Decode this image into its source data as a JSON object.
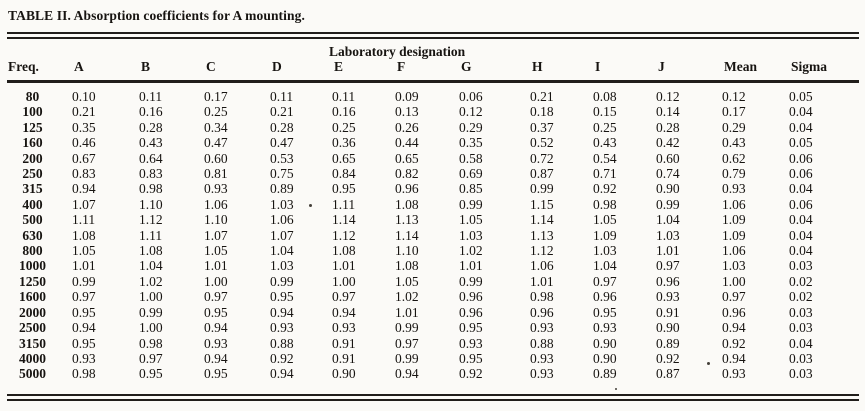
{
  "title": "TABLE II. Absorption coefficients for A mounting.",
  "table": {
    "group_header": "Laboratory designation",
    "columns": [
      "Freq.",
      "A",
      "B",
      "C",
      "D",
      "E",
      "F",
      "G",
      "H",
      "I",
      "J",
      "Mean",
      "Sigma"
    ],
    "rows": [
      {
        "freq": "80",
        "values": [
          "0.10",
          "0.11",
          "0.17",
          "0.11",
          "0.11",
          "0.09",
          "0.06",
          "0.21",
          "0.08",
          "0.12",
          "0.12",
          "0.05"
        ]
      },
      {
        "freq": "100",
        "values": [
          "0.21",
          "0.16",
          "0.25",
          "0.21",
          "0.16",
          "0.13",
          "0.12",
          "0.18",
          "0.15",
          "0.14",
          "0.17",
          "0.04"
        ]
      },
      {
        "freq": "125",
        "values": [
          "0.35",
          "0.28",
          "0.34",
          "0.28",
          "0.25",
          "0.26",
          "0.29",
          "0.37",
          "0.25",
          "0.28",
          "0.29",
          "0.04"
        ]
      },
      {
        "freq": "160",
        "values": [
          "0.46",
          "0.43",
          "0.47",
          "0.47",
          "0.36",
          "0.44",
          "0.35",
          "0.52",
          "0.43",
          "0.42",
          "0.43",
          "0.05"
        ]
      },
      {
        "freq": "200",
        "values": [
          "0.67",
          "0.64",
          "0.60",
          "0.53",
          "0.65",
          "0.65",
          "0.58",
          "0.72",
          "0.54",
          "0.60",
          "0.62",
          "0.06"
        ]
      },
      {
        "freq": "250",
        "values": [
          "0.83",
          "0.83",
          "0.81",
          "0.75",
          "0.84",
          "0.82",
          "0.69",
          "0.87",
          "0.71",
          "0.74",
          "0.79",
          "0.06"
        ]
      },
      {
        "freq": "315",
        "values": [
          "0.94",
          "0.98",
          "0.93",
          "0.89",
          "0.95",
          "0.96",
          "0.85",
          "0.99",
          "0.92",
          "0.90",
          "0.93",
          "0.04"
        ]
      },
      {
        "freq": "400",
        "values": [
          "1.07",
          "1.10",
          "1.06",
          "1.03",
          "1.11",
          "1.08",
          "0.99",
          "1.15",
          "0.98",
          "0.99",
          "1.06",
          "0.06"
        ]
      },
      {
        "freq": "500",
        "values": [
          "1.11",
          "1.12",
          "1.10",
          "1.06",
          "1.14",
          "1.13",
          "1.05",
          "1.14",
          "1.05",
          "1.04",
          "1.09",
          "0.04"
        ]
      },
      {
        "freq": "630",
        "values": [
          "1.08",
          "1.11",
          "1.07",
          "1.07",
          "1.12",
          "1.14",
          "1.03",
          "1.13",
          "1.09",
          "1.03",
          "1.09",
          "0.04"
        ]
      },
      {
        "freq": "800",
        "values": [
          "1.05",
          "1.08",
          "1.05",
          "1.04",
          "1.08",
          "1.10",
          "1.02",
          "1.12",
          "1.03",
          "1.01",
          "1.06",
          "0.04"
        ]
      },
      {
        "freq": "1000",
        "values": [
          "1.01",
          "1.04",
          "1.01",
          "1.03",
          "1.01",
          "1.08",
          "1.01",
          "1.06",
          "1.04",
          "0.97",
          "1.03",
          "0.03"
        ]
      },
      {
        "freq": "1250",
        "values": [
          "0.99",
          "1.02",
          "1.00",
          "0.99",
          "1.00",
          "1.05",
          "0.99",
          "1.01",
          "0.97",
          "0.96",
          "1.00",
          "0.02"
        ]
      },
      {
        "freq": "1600",
        "values": [
          "0.97",
          "1.00",
          "0.97",
          "0.95",
          "0.97",
          "1.02",
          "0.96",
          "0.98",
          "0.96",
          "0.93",
          "0.97",
          "0.02"
        ]
      },
      {
        "freq": "2000",
        "values": [
          "0.95",
          "0.99",
          "0.95",
          "0.94",
          "0.94",
          "1.01",
          "0.96",
          "0.96",
          "0.95",
          "0.91",
          "0.96",
          "0.03"
        ]
      },
      {
        "freq": "2500",
        "values": [
          "0.94",
          "1.00",
          "0.94",
          "0.93",
          "0.93",
          "0.99",
          "0.95",
          "0.93",
          "0.93",
          "0.90",
          "0.94",
          "0.03"
        ]
      },
      {
        "freq": "3150",
        "values": [
          "0.95",
          "0.98",
          "0.93",
          "0.88",
          "0.91",
          "0.97",
          "0.93",
          "0.88",
          "0.90",
          "0.89",
          "0.92",
          "0.04"
        ]
      },
      {
        "freq": "4000",
        "values": [
          "0.93",
          "0.97",
          "0.94",
          "0.92",
          "0.91",
          "0.99",
          "0.95",
          "0.93",
          "0.90",
          "0.92",
          "0.94",
          "0.03"
        ]
      },
      {
        "freq": "5000",
        "values": [
          "0.98",
          "0.95",
          "0.95",
          "0.94",
          "0.90",
          "0.94",
          "0.92",
          "0.93",
          "0.89",
          "0.87",
          "0.93",
          "0.03"
        ]
      }
    ]
  }
}
